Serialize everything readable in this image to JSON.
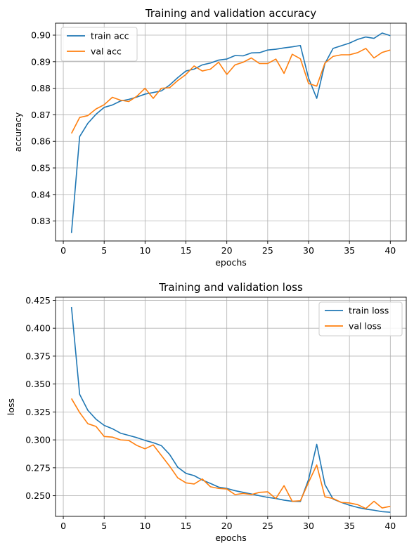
{
  "chart_data": [
    {
      "type": "line",
      "title": "Training and validation accuracy",
      "xlabel": "epochs",
      "ylabel": "accuracy",
      "xlim": [
        -0.95,
        41.95
      ],
      "ylim": [
        0.8225,
        0.9045
      ],
      "xticks": [
        0,
        5,
        10,
        15,
        20,
        25,
        30,
        35,
        40
      ],
      "xtick_labels": [
        "0",
        "5",
        "10",
        "15",
        "20",
        "25",
        "30",
        "35",
        "40"
      ],
      "yticks": [
        0.83,
        0.84,
        0.85,
        0.86,
        0.87,
        0.88,
        0.89,
        0.9
      ],
      "ytick_labels": [
        "0.83",
        "0.84",
        "0.85",
        "0.86",
        "0.87",
        "0.88",
        "0.89",
        "0.90"
      ],
      "grid": true,
      "legend": "upper-left",
      "x": [
        1,
        2,
        3,
        4,
        5,
        6,
        7,
        8,
        9,
        10,
        11,
        12,
        13,
        14,
        15,
        16,
        17,
        18,
        19,
        20,
        21,
        22,
        23,
        24,
        25,
        26,
        27,
        28,
        29,
        30,
        31,
        32,
        33,
        34,
        35,
        36,
        37,
        38,
        39,
        40
      ],
      "series": [
        {
          "name": "train acc",
          "color": "#1f77b4",
          "values": [
            0.8255,
            0.8618,
            0.8668,
            0.8702,
            0.8728,
            0.8737,
            0.8752,
            0.8758,
            0.8767,
            0.8778,
            0.8784,
            0.879,
            0.8812,
            0.884,
            0.8865,
            0.8872,
            0.8888,
            0.8895,
            0.8906,
            0.891,
            0.8923,
            0.8922,
            0.8933,
            0.8934,
            0.8944,
            0.8947,
            0.8952,
            0.8956,
            0.8961,
            0.8838,
            0.8762,
            0.8893,
            0.895,
            0.896,
            0.897,
            0.8984,
            0.8993,
            0.8988,
            0.9008,
            0.8998
          ]
        },
        {
          "name": "val acc",
          "color": "#ff7f0e",
          "values": [
            0.863,
            0.869,
            0.8697,
            0.8722,
            0.8738,
            0.8766,
            0.8755,
            0.875,
            0.877,
            0.88,
            0.8762,
            0.88,
            0.8802,
            0.8829,
            0.8852,
            0.8884,
            0.8865,
            0.8872,
            0.8898,
            0.8852,
            0.8888,
            0.8898,
            0.8914,
            0.8893,
            0.8893,
            0.891,
            0.8856,
            0.8928,
            0.8911,
            0.8818,
            0.8808,
            0.8895,
            0.892,
            0.8926,
            0.8926,
            0.8934,
            0.895,
            0.8914,
            0.8935,
            0.8944
          ]
        }
      ]
    },
    {
      "type": "line",
      "title": "Training and validation loss",
      "xlabel": "epochs",
      "ylabel": "loss",
      "xlim": [
        -0.95,
        41.95
      ],
      "ylim": [
        0.2315,
        0.4278
      ],
      "xticks": [
        0,
        5,
        10,
        15,
        20,
        25,
        30,
        35,
        40
      ],
      "xtick_labels": [
        "0",
        "5",
        "10",
        "15",
        "20",
        "25",
        "30",
        "35",
        "40"
      ],
      "yticks": [
        0.25,
        0.275,
        0.3,
        0.325,
        0.35,
        0.375,
        0.4,
        0.425
      ],
      "ytick_labels": [
        "0.250",
        "0.275",
        "0.300",
        "0.325",
        "0.350",
        "0.375",
        "0.400",
        "0.425"
      ],
      "grid": true,
      "legend": "upper-right",
      "x": [
        1,
        2,
        3,
        4,
        5,
        6,
        7,
        8,
        9,
        10,
        11,
        12,
        13,
        14,
        15,
        16,
        17,
        18,
        19,
        20,
        21,
        22,
        23,
        24,
        25,
        26,
        27,
        28,
        29,
        30,
        31,
        32,
        33,
        34,
        35,
        36,
        37,
        38,
        39,
        40
      ],
      "series": [
        {
          "name": "train loss",
          "color": "#1f77b4",
          "values": [
            0.419,
            0.3408,
            0.3265,
            0.3185,
            0.313,
            0.31,
            0.306,
            0.304,
            0.302,
            0.2995,
            0.2975,
            0.2948,
            0.287,
            0.2755,
            0.27,
            0.268,
            0.264,
            0.261,
            0.2577,
            0.2565,
            0.2545,
            0.253,
            0.2515,
            0.25,
            0.2485,
            0.2475,
            0.246,
            0.245,
            0.2448,
            0.2645,
            0.296,
            0.26,
            0.247,
            0.244,
            0.2415,
            0.2395,
            0.238,
            0.237,
            0.2357,
            0.2352
          ]
        },
        {
          "name": "val loss",
          "color": "#ff7f0e",
          "values": [
            0.337,
            0.3245,
            0.3145,
            0.312,
            0.303,
            0.3025,
            0.3,
            0.2995,
            0.295,
            0.292,
            0.2955,
            0.286,
            0.2765,
            0.266,
            0.2615,
            0.2605,
            0.265,
            0.258,
            0.2565,
            0.256,
            0.251,
            0.252,
            0.251,
            0.253,
            0.2535,
            0.2475,
            0.259,
            0.245,
            0.2455,
            0.262,
            0.2775,
            0.249,
            0.2475,
            0.244,
            0.2435,
            0.242,
            0.2385,
            0.245,
            0.239,
            0.2405
          ]
        }
      ]
    }
  ]
}
